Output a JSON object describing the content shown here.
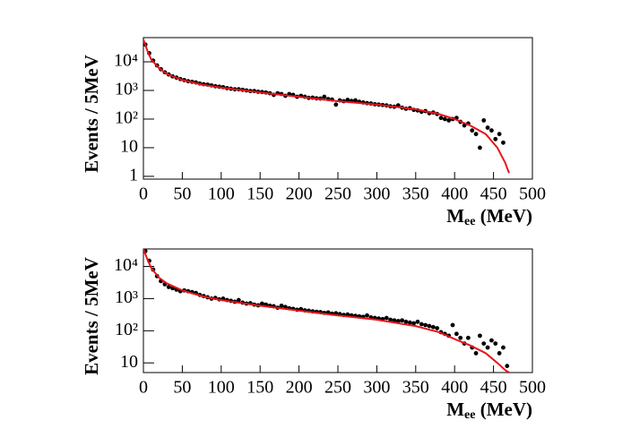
{
  "chart_data": [
    {
      "type": "scatter",
      "ylabel": "Events / 5MeV",
      "xlabel": {
        "main": "M",
        "sub": "ee",
        "unit": " (MeV)"
      },
      "log_y": true,
      "color": "#000000",
      "xlim": [
        0,
        500
      ],
      "xticks": [
        0,
        50,
        100,
        150,
        200,
        250,
        300,
        350,
        400,
        450,
        500
      ],
      "ylim": [
        0.8,
        70000
      ],
      "yticks": [
        1,
        10,
        {
          "value": 100,
          "label": "10²"
        },
        {
          "value": 1000,
          "label": "10³"
        },
        {
          "value": 10000,
          "label": "10⁴"
        }
      ],
      "x": [
        2.5,
        7.5,
        12.5,
        17.5,
        22.5,
        27.5,
        32.5,
        37.5,
        42.5,
        47.5,
        52.5,
        57.5,
        62.5,
        67.5,
        72.5,
        77.5,
        82.5,
        87.5,
        92.5,
        97.5,
        102.5,
        107.5,
        112.5,
        117.5,
        122.5,
        127.5,
        132.5,
        137.5,
        142.5,
        147.5,
        152.5,
        157.5,
        162.5,
        167.5,
        172.5,
        177.5,
        182.5,
        187.5,
        192.5,
        197.5,
        202.5,
        207.5,
        212.5,
        217.5,
        222.5,
        227.5,
        232.5,
        237.5,
        242.5,
        247.5,
        252.5,
        257.5,
        262.5,
        267.5,
        272.5,
        277.5,
        282.5,
        287.5,
        292.5,
        297.5,
        302.5,
        307.5,
        312.5,
        317.5,
        322.5,
        327.5,
        332.5,
        337.5,
        342.5,
        347.5,
        352.5,
        357.5,
        362.5,
        367.5,
        372.5,
        377.5,
        382.5,
        387.5,
        392.5,
        397.5,
        402.5,
        407.5,
        412.5,
        417.5,
        422.5,
        427.5,
        432.5,
        437.5,
        442.5,
        447.5,
        452.5,
        457.5,
        462.5
      ],
      "values": [
        40000,
        20000,
        11000,
        7500,
        5500,
        4300,
        3600,
        3100,
        2800,
        2500,
        2300,
        2100,
        2000,
        1900,
        1750,
        1650,
        1600,
        1500,
        1400,
        1350,
        1300,
        1200,
        1150,
        1100,
        1100,
        1050,
        1000,
        950,
        950,
        900,
        880,
        850,
        800,
        700,
        800,
        750,
        650,
        750,
        700,
        600,
        650,
        600,
        550,
        560,
        530,
        520,
        600,
        500,
        480,
        320,
        450,
        420,
        470,
        430,
        450,
        400,
        380,
        360,
        350,
        330,
        320,
        310,
        300,
        280,
        270,
        300,
        250,
        230,
        240,
        210,
        200,
        180,
        190,
        160,
        170,
        150,
        110,
        100,
        90,
        100,
        110,
        80,
        60,
        70,
        40,
        30,
        10,
        90,
        50,
        40,
        20,
        30,
        15
      ],
      "fit": {
        "color": "#e8141c",
        "x": [
          0,
          5,
          10,
          20,
          30,
          50,
          75,
          100,
          150,
          200,
          250,
          300,
          350,
          380,
          400,
          420,
          440,
          455,
          465,
          470
        ],
        "values": [
          60000,
          25000,
          12000,
          6000,
          3800,
          2300,
          1600,
          1250,
          850,
          600,
          420,
          320,
          220,
          150,
          100,
          60,
          30,
          10,
          3,
          1.3
        ]
      }
    },
    {
      "type": "scatter",
      "ylabel": "Events / 5MeV",
      "xlabel": {
        "main": "M",
        "sub": "ee",
        "unit": " (MeV)"
      },
      "log_y": true,
      "color": "#000000",
      "xlim": [
        0,
        500
      ],
      "xticks": [
        0,
        50,
        100,
        150,
        200,
        250,
        300,
        350,
        400,
        450,
        500
      ],
      "ylim": [
        5,
        35000
      ],
      "yticks": [
        10,
        {
          "value": 100,
          "label": "10²"
        },
        {
          "value": 1000,
          "label": "10³"
        },
        {
          "value": 10000,
          "label": "10⁴"
        }
      ],
      "x": [
        2.5,
        7.5,
        12.5,
        17.5,
        22.5,
        27.5,
        32.5,
        37.5,
        42.5,
        47.5,
        52.5,
        57.5,
        62.5,
        67.5,
        72.5,
        77.5,
        82.5,
        87.5,
        92.5,
        97.5,
        102.5,
        107.5,
        112.5,
        117.5,
        122.5,
        127.5,
        132.5,
        137.5,
        142.5,
        147.5,
        152.5,
        157.5,
        162.5,
        167.5,
        172.5,
        177.5,
        182.5,
        187.5,
        192.5,
        197.5,
        202.5,
        207.5,
        212.5,
        217.5,
        222.5,
        227.5,
        232.5,
        237.5,
        242.5,
        247.5,
        252.5,
        257.5,
        262.5,
        267.5,
        272.5,
        277.5,
        282.5,
        287.5,
        292.5,
        297.5,
        302.5,
        307.5,
        312.5,
        317.5,
        322.5,
        327.5,
        332.5,
        337.5,
        342.5,
        347.5,
        352.5,
        357.5,
        362.5,
        367.5,
        372.5,
        377.5,
        382.5,
        387.5,
        392.5,
        397.5,
        402.5,
        407.5,
        412.5,
        417.5,
        422.5,
        427.5,
        432.5,
        437.5,
        442.5,
        447.5,
        452.5,
        457.5,
        462.5,
        467.5
      ],
      "values": [
        30000,
        15000,
        8000,
        5000,
        3500,
        2800,
        2300,
        2100,
        1900,
        1700,
        1800,
        1700,
        1600,
        1500,
        1300,
        1200,
        1100,
        1000,
        1050,
        950,
        1000,
        900,
        850,
        800,
        900,
        750,
        700,
        720,
        650,
        620,
        700,
        650,
        600,
        580,
        520,
        600,
        550,
        500,
        480,
        450,
        470,
        430,
        420,
        400,
        390,
        380,
        360,
        370,
        340,
        350,
        330,
        310,
        320,
        300,
        290,
        280,
        270,
        300,
        260,
        250,
        240,
        230,
        250,
        220,
        210,
        200,
        210,
        190,
        180,
        170,
        190,
        160,
        150,
        140,
        130,
        120,
        90,
        80,
        70,
        150,
        80,
        60,
        40,
        60,
        30,
        20,
        70,
        40,
        30,
        50,
        40,
        20,
        30,
        8
      ],
      "fit": {
        "color": "#e8141c",
        "x": [
          0,
          5,
          10,
          20,
          30,
          50,
          75,
          100,
          150,
          200,
          250,
          300,
          350,
          380,
          400,
          420,
          440,
          455,
          465,
          470
        ],
        "values": [
          35000,
          17000,
          9000,
          4500,
          3000,
          1800,
          1200,
          900,
          600,
          420,
          300,
          220,
          140,
          90,
          55,
          35,
          20,
          10,
          6,
          5
        ]
      }
    }
  ]
}
